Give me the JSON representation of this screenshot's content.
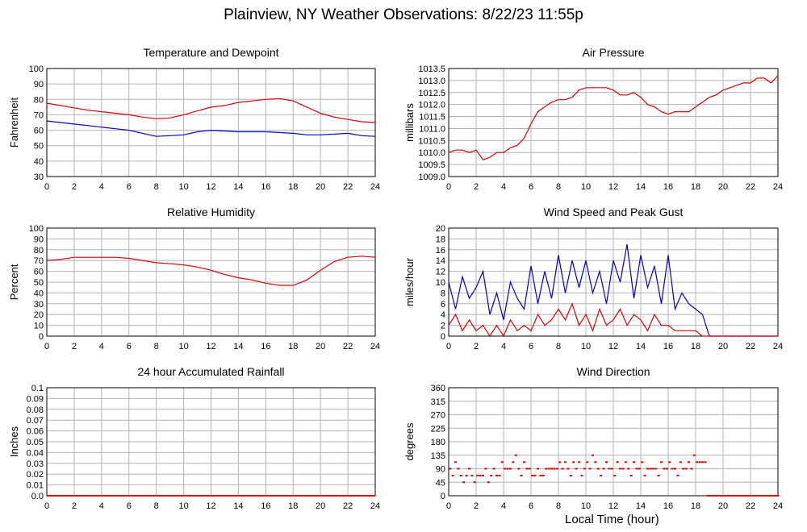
{
  "page_title": "Plainview, NY Weather Observations: 8/22/23 11:55p",
  "x_axis_title": "Local Time (hour)",
  "colors": {
    "red": "#e00000",
    "blue": "#0000d0",
    "grid": "#b4b4b4"
  },
  "chart_data": [
    {
      "type": "line",
      "title": "Temperature and Dewpoint",
      "ylabel": "Fahrenheit",
      "xlabel": "",
      "xlim": [
        0,
        24
      ],
      "ylim": [
        30,
        100
      ],
      "yticks": [
        "30",
        "40",
        "50",
        "60",
        "70",
        "80",
        "90",
        "100"
      ],
      "xticks": [
        "0",
        "2",
        "4",
        "6",
        "8",
        "10",
        "12",
        "14",
        "16",
        "18",
        "20",
        "22",
        "24"
      ],
      "grid": true,
      "series": [
        {
          "color": "#e00000",
          "x": [
            0,
            1,
            2,
            3,
            4,
            5,
            6,
            7,
            8,
            9,
            10,
            11,
            12,
            13,
            14,
            15,
            16,
            17,
            18,
            19,
            20,
            21,
            22,
            23,
            24
          ],
          "values": [
            77.5,
            76,
            74.5,
            73,
            72,
            71,
            70,
            68.5,
            67.5,
            68,
            70,
            72.5,
            75,
            76,
            78,
            79,
            80,
            80.5,
            79,
            75,
            71,
            68.5,
            67,
            65.5,
            65
          ]
        },
        {
          "color": "#0000d0",
          "x": [
            0,
            1,
            2,
            3,
            4,
            5,
            6,
            7,
            8,
            9,
            10,
            11,
            12,
            13,
            14,
            15,
            16,
            17,
            18,
            19,
            20,
            21,
            22,
            23,
            24
          ],
          "values": [
            66,
            65,
            64,
            63,
            62,
            61,
            60,
            58,
            56,
            56.5,
            57,
            59,
            60,
            59.5,
            59,
            59,
            59,
            58.5,
            58,
            57,
            57,
            57.5,
            58,
            56.5,
            56
          ]
        }
      ]
    },
    {
      "type": "line",
      "title": "Air Pressure",
      "ylabel": "millibars",
      "xlabel": "",
      "xlim": [
        0,
        24
      ],
      "ylim": [
        1009.0,
        1013.5
      ],
      "yticks": [
        "1009.0",
        "1009.5",
        "1010.0",
        "1010.5",
        "1011.0",
        "1011.5",
        "1012.0",
        "1012.5",
        "1013.0",
        "1013.5"
      ],
      "xticks": [
        "0",
        "2",
        "4",
        "6",
        "8",
        "10",
        "12",
        "14",
        "16",
        "18",
        "20",
        "22",
        "24"
      ],
      "grid": true,
      "series": [
        {
          "color": "#e00000",
          "x": [
            0,
            0.5,
            1,
            1.5,
            2,
            2.5,
            3,
            3.5,
            4,
            4.5,
            5,
            5.5,
            6,
            6.5,
            7,
            7.5,
            8,
            8.5,
            9,
            9.5,
            10,
            10.5,
            11,
            11.5,
            12,
            12.5,
            13,
            13.5,
            14,
            14.5,
            15,
            15.5,
            16,
            16.5,
            17,
            17.5,
            18,
            18.5,
            19,
            19.5,
            20,
            20.5,
            21,
            21.5,
            22,
            22.5,
            23,
            23.5,
            24
          ],
          "values": [
            1010.0,
            1010.1,
            1010.1,
            1010.0,
            1010.1,
            1009.7,
            1009.8,
            1010.0,
            1010.0,
            1010.2,
            1010.3,
            1010.6,
            1011.2,
            1011.7,
            1011.9,
            1012.1,
            1012.2,
            1012.2,
            1012.3,
            1012.6,
            1012.7,
            1012.7,
            1012.7,
            1012.7,
            1012.6,
            1012.4,
            1012.4,
            1012.5,
            1012.3,
            1012.0,
            1011.9,
            1011.7,
            1011.6,
            1011.7,
            1011.7,
            1011.7,
            1011.9,
            1012.1,
            1012.3,
            1012.4,
            1012.6,
            1012.7,
            1012.8,
            1012.9,
            1012.9,
            1013.1,
            1013.1,
            1012.9,
            1013.2
          ]
        }
      ]
    },
    {
      "type": "line",
      "title": "Relative Humidity",
      "ylabel": "Percent",
      "xlabel": "",
      "xlim": [
        0,
        24
      ],
      "ylim": [
        0,
        100
      ],
      "yticks": [
        "0",
        "10",
        "20",
        "30",
        "40",
        "50",
        "60",
        "70",
        "80",
        "90",
        "100"
      ],
      "xticks": [
        "0",
        "2",
        "4",
        "6",
        "8",
        "10",
        "12",
        "14",
        "16",
        "18",
        "20",
        "22",
        "24"
      ],
      "grid": true,
      "series": [
        {
          "color": "#e00000",
          "x": [
            0,
            1,
            2,
            3,
            4,
            5,
            6,
            7,
            8,
            9,
            10,
            11,
            12,
            13,
            14,
            15,
            16,
            17,
            18,
            19,
            20,
            21,
            22,
            23,
            24
          ],
          "values": [
            70,
            71,
            73,
            73,
            73,
            73,
            72,
            70,
            68,
            67,
            66,
            64,
            61,
            57,
            54,
            52,
            49,
            47,
            47,
            52,
            61,
            69,
            73,
            74,
            73
          ]
        }
      ]
    },
    {
      "type": "line",
      "title": "Wind Speed and Peak Gust",
      "ylabel": "miles/hour",
      "xlabel": "",
      "xlim": [
        0,
        24
      ],
      "ylim": [
        0,
        20
      ],
      "yticks": [
        "0",
        "2",
        "4",
        "6",
        "8",
        "10",
        "12",
        "14",
        "16",
        "18",
        "20"
      ],
      "xticks": [
        "0",
        "2",
        "4",
        "6",
        "8",
        "10",
        "12",
        "14",
        "16",
        "18",
        "20",
        "22",
        "24"
      ],
      "grid": true,
      "series": [
        {
          "color": "#0000d0",
          "x": [
            0,
            0.5,
            1,
            1.5,
            2,
            2.5,
            3,
            3.5,
            4,
            4.5,
            5,
            5.5,
            6,
            6.5,
            7,
            7.5,
            8,
            8.5,
            9,
            9.5,
            10,
            10.5,
            11,
            11.5,
            12,
            12.5,
            13,
            13.5,
            14,
            14.5,
            15,
            15.5,
            16,
            16.5,
            17,
            17.5,
            18,
            18.5,
            19,
            19.5,
            20,
            21,
            22,
            23,
            24
          ],
          "values": [
            10,
            5,
            11,
            7,
            9,
            12,
            4,
            8,
            3,
            10,
            7,
            5,
            13,
            6,
            12,
            7,
            15,
            8,
            14,
            9,
            14,
            8,
            12,
            6,
            14,
            10,
            17,
            7,
            15,
            9,
            13,
            6,
            15,
            5,
            8,
            6,
            5,
            4,
            0,
            0,
            0,
            0,
            0,
            0,
            0
          ]
        },
        {
          "color": "#e00000",
          "x": [
            0,
            0.5,
            1,
            1.5,
            2,
            2.5,
            3,
            3.5,
            4,
            4.5,
            5,
            5.5,
            6,
            6.5,
            7,
            7.5,
            8,
            8.5,
            9,
            9.5,
            10,
            10.5,
            11,
            11.5,
            12,
            12.5,
            13,
            13.5,
            14,
            14.5,
            15,
            15.5,
            16,
            16.5,
            17,
            17.5,
            18,
            18.5,
            19,
            19.5,
            20,
            21,
            22,
            23,
            24
          ],
          "values": [
            2,
            4,
            1,
            3,
            1,
            2,
            0,
            2,
            0,
            3,
            1,
            2,
            1,
            4,
            2,
            3,
            5,
            3,
            6,
            2,
            4,
            1,
            5,
            2,
            3,
            5,
            2,
            4,
            3,
            1,
            4,
            2,
            2,
            1,
            1,
            1,
            1,
            0,
            0,
            0,
            0,
            0,
            0,
            0,
            0
          ]
        }
      ]
    },
    {
      "type": "line",
      "title": "24 hour Accumulated Rainfall",
      "ylabel": "Inches",
      "xlabel": "",
      "xlim": [
        0,
        24
      ],
      "ylim": [
        0,
        0.1
      ],
      "yticks": [
        "0.0",
        "0.01",
        "0.02",
        "0.03",
        "0.04",
        "0.05",
        "0.06",
        "0.07",
        "0.08",
        "0.09",
        "0.1"
      ],
      "xticks": [
        "0",
        "2",
        "4",
        "6",
        "8",
        "10",
        "12",
        "14",
        "16",
        "18",
        "20",
        "22",
        "24"
      ],
      "grid": true,
      "series": [
        {
          "color": "#e00000",
          "x": [
            0,
            24
          ],
          "values": [
            0,
            0
          ]
        }
      ]
    },
    {
      "type": "scatter",
      "title": "Wind Direction",
      "ylabel": "degrees",
      "xlabel": "Local Time (hour)",
      "xlim": [
        0,
        24
      ],
      "ylim": [
        0,
        360
      ],
      "yticks": [
        "0",
        "45",
        "90",
        "135",
        "180",
        "225",
        "270",
        "315",
        "360"
      ],
      "xticks": [
        "0",
        "2",
        "4",
        "6",
        "8",
        "10",
        "12",
        "14",
        "16",
        "18",
        "20",
        "22",
        "24"
      ],
      "grid": true,
      "series": [
        {
          "color": "#e00000",
          "x": [
            0.1,
            0.3,
            0.5,
            0.7,
            0.9,
            1.1,
            1.3,
            1.5,
            1.7,
            1.9,
            2.1,
            2.3,
            2.5,
            2.7,
            2.9,
            3.1,
            3.3,
            3.5,
            3.7,
            3.9,
            4.1,
            4.3,
            4.5,
            4.7,
            4.9,
            5.1,
            5.3,
            5.5,
            5.7,
            5.9,
            6.1,
            6.3,
            6.5,
            6.7,
            6.9,
            7.1,
            7.3,
            7.5,
            7.7,
            7.9,
            8.1,
            8.3,
            8.5,
            8.7,
            8.9,
            9.1,
            9.3,
            9.5,
            9.7,
            9.9,
            10.1,
            10.3,
            10.5,
            10.7,
            10.9,
            11.1,
            11.3,
            11.5,
            11.7,
            11.9,
            12.1,
            12.3,
            12.5,
            12.7,
            12.9,
            13.1,
            13.3,
            13.5,
            13.7,
            13.9,
            14.1,
            14.3,
            14.5,
            14.7,
            14.9,
            15.1,
            15.3,
            15.5,
            15.7,
            15.9,
            16.1,
            16.3,
            16.5,
            16.7,
            16.9,
            17.1,
            17.3,
            17.5,
            17.7,
            17.9,
            18.1,
            18.3,
            18.5,
            18.7,
            18.9,
            19.1,
            19.5,
            20,
            20.5,
            21,
            21.5,
            22,
            22.5,
            23,
            23.5,
            24
          ],
          "values": [
            90,
            67,
            112,
            90,
            67,
            45,
            67,
            90,
            67,
            45,
            67,
            67,
            67,
            90,
            45,
            67,
            90,
            67,
            67,
            112,
            90,
            90,
            90,
            112,
            135,
            90,
            67,
            112,
            90,
            90,
            67,
            67,
            90,
            67,
            67,
            90,
            90,
            90,
            90,
            90,
            112,
            90,
            112,
            90,
            67,
            112,
            90,
            112,
            67,
            90,
            112,
            90,
            135,
            112,
            90,
            67,
            90,
            112,
            90,
            90,
            67,
            112,
            90,
            90,
            112,
            90,
            67,
            112,
            90,
            90,
            112,
            67,
            90,
            90,
            90,
            90,
            67,
            112,
            90,
            90,
            112,
            90,
            90,
            67,
            112,
            90,
            90,
            112,
            90,
            135,
            112,
            112,
            112,
            112,
            0,
            0,
            0,
            0,
            0,
            0,
            0,
            0,
            0,
            0,
            0,
            0
          ]
        }
      ]
    }
  ]
}
